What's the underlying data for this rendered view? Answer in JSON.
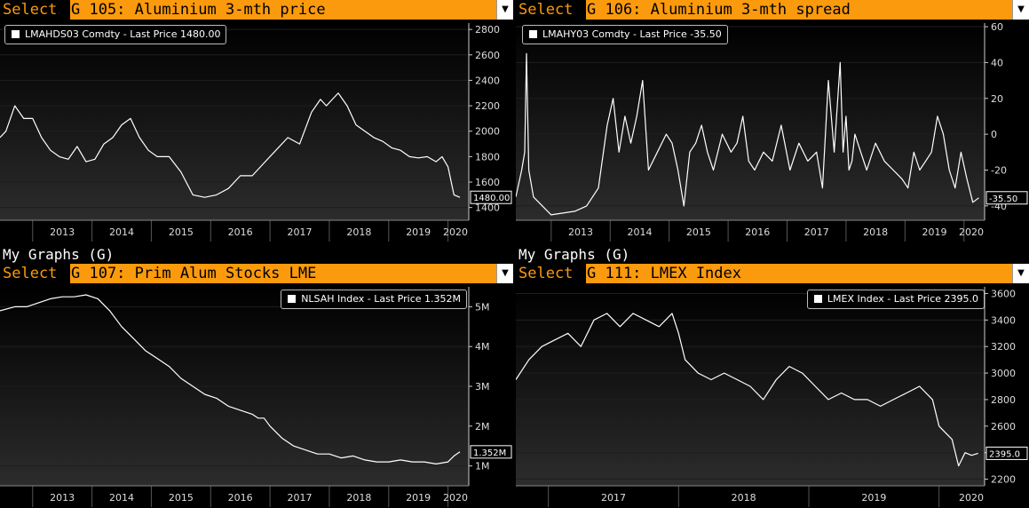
{
  "panels": [
    {
      "id": "g105",
      "heading": "",
      "select_label": "Select",
      "title": "G 105: Aluminium 3-mth price",
      "legend": "LMAHDS03 Comdty - Last Price 1480.00",
      "last_label": "1480.00",
      "legend_pos": "top-left"
    },
    {
      "id": "g106",
      "heading": "",
      "select_label": "Select",
      "title": "G 106: Aluminium 3-mth spread",
      "legend": "LMAHY03 Comdty - Last Price -35.50",
      "last_label": "-35.50",
      "legend_pos": "top-left"
    },
    {
      "id": "g107",
      "heading": "My Graphs (G)",
      "select_label": "Select",
      "title": "G 107: Prim Alum Stocks LME",
      "legend": "NLSAH Index - Last Price 1.352M",
      "last_label": "1.352M",
      "legend_pos": "top-right"
    },
    {
      "id": "g111",
      "heading": "My Graphs (G)",
      "select_label": "Select",
      "title": "G 111: LMEX Index",
      "legend": "LMEX Index - Last Price 2395.0",
      "last_label": "2395.0",
      "legend_pos": "top-right"
    }
  ],
  "chart_data": [
    {
      "type": "line",
      "series_color": "#ffffff",
      "xlim": [
        2012.45,
        2020.35
      ],
      "ylim": [
        1300,
        2850
      ],
      "x_ticks": [
        "2013",
        "2014",
        "2015",
        "2016",
        "2017",
        "2018",
        "2019",
        "2020"
      ],
      "y_ticks": [
        "1400",
        "1600",
        "1800",
        "2000",
        "2200",
        "2400",
        "2600",
        "2800"
      ],
      "y_tick_values": [
        1400,
        1600,
        1800,
        2000,
        2200,
        2400,
        2600,
        2800
      ],
      "last_value": 1480,
      "x": [
        2012.45,
        2012.55,
        2012.7,
        2012.85,
        2013.0,
        2013.15,
        2013.3,
        2013.45,
        2013.6,
        2013.75,
        2013.9,
        2014.05,
        2014.2,
        2014.35,
        2014.5,
        2014.65,
        2014.8,
        2014.95,
        2015.1,
        2015.3,
        2015.5,
        2015.7,
        2015.9,
        2016.1,
        2016.3,
        2016.5,
        2016.7,
        2016.9,
        2017.1,
        2017.3,
        2017.5,
        2017.7,
        2017.85,
        2017.95,
        2018.05,
        2018.15,
        2018.3,
        2018.45,
        2018.6,
        2018.75,
        2018.9,
        2019.05,
        2019.2,
        2019.35,
        2019.5,
        2019.65,
        2019.8,
        2019.9,
        2020.0,
        2020.1,
        2020.2
      ],
      "y": [
        1950,
        2000,
        2200,
        2100,
        2100,
        1950,
        1850,
        1800,
        1780,
        1880,
        1760,
        1780,
        1900,
        1950,
        2050,
        2100,
        1950,
        1850,
        1800,
        1800,
        1680,
        1500,
        1480,
        1500,
        1550,
        1650,
        1650,
        1750,
        1850,
        1950,
        1900,
        2150,
        2250,
        2200,
        2250,
        2300,
        2200,
        2050,
        2000,
        1950,
        1920,
        1870,
        1850,
        1800,
        1790,
        1800,
        1760,
        1800,
        1720,
        1500,
        1480
      ]
    },
    {
      "type": "line",
      "series_color": "#ffffff",
      "xlim": [
        2012.4,
        2020.35
      ],
      "ylim": [
        -48,
        62
      ],
      "x_ticks": [
        "2013",
        "2014",
        "2015",
        "2016",
        "2017",
        "2018",
        "2019",
        "2020"
      ],
      "y_ticks": [
        "-40",
        "-20",
        "0",
        "20",
        "40",
        "60"
      ],
      "y_tick_values": [
        -40,
        -20,
        0,
        20,
        40,
        60
      ],
      "last_value": -35.5,
      "x": [
        2012.4,
        2012.5,
        2012.55,
        2012.58,
        2012.62,
        2012.7,
        2012.85,
        2013.0,
        2013.2,
        2013.4,
        2013.6,
        2013.8,
        2013.95,
        2014.05,
        2014.15,
        2014.25,
        2014.35,
        2014.45,
        2014.55,
        2014.65,
        2014.8,
        2014.95,
        2015.05,
        2015.15,
        2015.25,
        2015.35,
        2015.45,
        2015.55,
        2015.65,
        2015.75,
        2015.9,
        2016.05,
        2016.15,
        2016.25,
        2016.35,
        2016.45,
        2016.6,
        2016.75,
        2016.9,
        2017.05,
        2017.2,
        2017.35,
        2017.5,
        2017.6,
        2017.7,
        2017.8,
        2017.9,
        2017.95,
        2018.0,
        2018.05,
        2018.1,
        2018.15,
        2018.25,
        2018.35,
        2018.5,
        2018.65,
        2018.8,
        2018.95,
        2019.05,
        2019.15,
        2019.25,
        2019.35,
        2019.45,
        2019.55,
        2019.65,
        2019.75,
        2019.85,
        2019.95,
        2020.05,
        2020.15,
        2020.25
      ],
      "y": [
        -35,
        -20,
        -10,
        45,
        -20,
        -35,
        -40,
        -45,
        -44,
        -43,
        -40,
        -30,
        5,
        20,
        -10,
        10,
        -5,
        10,
        30,
        -20,
        -10,
        0,
        -5,
        -20,
        -40,
        -10,
        -5,
        5,
        -10,
        -20,
        0,
        -10,
        -5,
        10,
        -15,
        -20,
        -10,
        -15,
        5,
        -20,
        -5,
        -15,
        -10,
        -30,
        30,
        -10,
        40,
        -10,
        10,
        -20,
        -15,
        0,
        -10,
        -20,
        -5,
        -15,
        -20,
        -25,
        -30,
        -10,
        -20,
        -15,
        -10,
        10,
        0,
        -20,
        -30,
        -10,
        -25,
        -38,
        -35.5
      ]
    },
    {
      "type": "line",
      "series_color": "#ffffff",
      "xlim": [
        2012.45,
        2020.35
      ],
      "ylim": [
        500000,
        5500000
      ],
      "x_ticks": [
        "2013",
        "2014",
        "2015",
        "2016",
        "2017",
        "2018",
        "2019",
        "2020"
      ],
      "y_ticks": [
        "1M",
        "2M",
        "3M",
        "4M",
        "5M"
      ],
      "y_tick_values": [
        1000000,
        2000000,
        3000000,
        4000000,
        5000000
      ],
      "last_value": 1352000,
      "x": [
        2012.45,
        2012.7,
        2012.9,
        2013.1,
        2013.3,
        2013.5,
        2013.7,
        2013.9,
        2014.1,
        2014.3,
        2014.5,
        2014.7,
        2014.9,
        2015.1,
        2015.3,
        2015.5,
        2015.7,
        2015.9,
        2016.1,
        2016.3,
        2016.5,
        2016.7,
        2016.8,
        2016.9,
        2017.0,
        2017.2,
        2017.4,
        2017.6,
        2017.8,
        2018.0,
        2018.2,
        2018.4,
        2018.6,
        2018.8,
        2019.0,
        2019.2,
        2019.4,
        2019.6,
        2019.8,
        2020.0,
        2020.1,
        2020.2
      ],
      "y": [
        4900000,
        5000000,
        5000000,
        5100000,
        5200000,
        5250000,
        5250000,
        5300000,
        5200000,
        4900000,
        4500000,
        4200000,
        3900000,
        3700000,
        3500000,
        3200000,
        3000000,
        2800000,
        2700000,
        2500000,
        2400000,
        2300000,
        2200000,
        2200000,
        2000000,
        1700000,
        1500000,
        1400000,
        1300000,
        1300000,
        1200000,
        1250000,
        1150000,
        1100000,
        1100000,
        1150000,
        1100000,
        1100000,
        1050000,
        1100000,
        1250000,
        1352000
      ]
    },
    {
      "type": "line",
      "series_color": "#ffffff",
      "xlim": [
        2016.75,
        2020.35
      ],
      "ylim": [
        2150,
        3650
      ],
      "x_ticks": [
        "2017",
        "2018",
        "2019",
        "2020"
      ],
      "y_ticks": [
        "2200",
        "2400",
        "2600",
        "2800",
        "3000",
        "3200",
        "3400",
        "3600"
      ],
      "y_tick_values": [
        2200,
        2400,
        2600,
        2800,
        3000,
        3200,
        3400,
        3600
      ],
      "last_value": 2395,
      "x": [
        2016.75,
        2016.85,
        2016.95,
        2017.05,
        2017.15,
        2017.25,
        2017.35,
        2017.45,
        2017.55,
        2017.65,
        2017.75,
        2017.85,
        2017.95,
        2018.0,
        2018.05,
        2018.15,
        2018.25,
        2018.35,
        2018.45,
        2018.55,
        2018.65,
        2018.75,
        2018.85,
        2018.95,
        2019.05,
        2019.15,
        2019.25,
        2019.35,
        2019.45,
        2019.55,
        2019.65,
        2019.75,
        2019.85,
        2019.95,
        2020.0,
        2020.05,
        2020.1,
        2020.15,
        2020.2,
        2020.25,
        2020.3
      ],
      "y": [
        2950,
        3100,
        3200,
        3250,
        3300,
        3200,
        3400,
        3450,
        3350,
        3450,
        3400,
        3350,
        3450,
        3300,
        3100,
        3000,
        2950,
        3000,
        2950,
        2900,
        2800,
        2950,
        3050,
        3000,
        2900,
        2800,
        2850,
        2800,
        2800,
        2750,
        2800,
        2850,
        2900,
        2800,
        2600,
        2550,
        2500,
        2300,
        2400,
        2380,
        2395
      ]
    }
  ]
}
